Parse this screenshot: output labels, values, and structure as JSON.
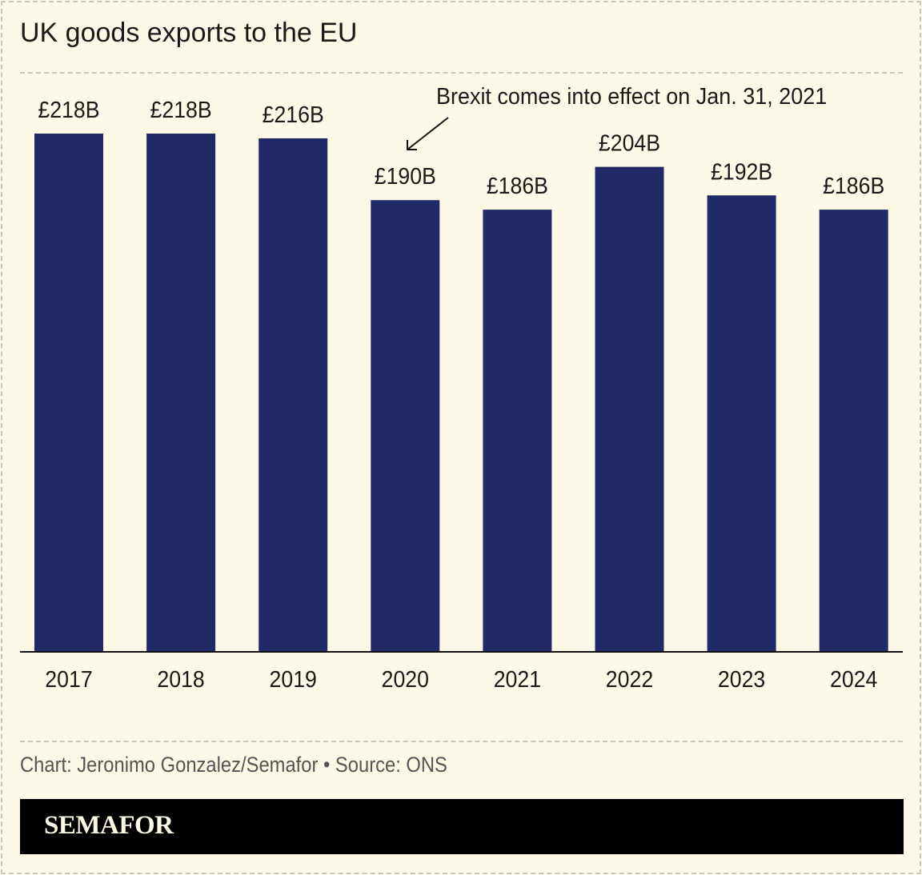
{
  "title": "UK goods exports to the EU",
  "credit": "Chart: Jeronimo Gonzalez/Semafor • Source: ONS",
  "brand": "SEMAFOR",
  "colors": {
    "bar": "#212a66",
    "background": "#fdf9e7"
  },
  "chart_data": {
    "type": "bar",
    "title": "UK goods exports to the EU",
    "categories": [
      "2017",
      "2018",
      "2019",
      "2020",
      "2021",
      "2022",
      "2023",
      "2024"
    ],
    "values": [
      218,
      218,
      216,
      190,
      186,
      204,
      192,
      186
    ],
    "data_labels": [
      "£218B",
      "£218B",
      "£216B",
      "£190B",
      "£186B",
      "£204B",
      "£192B",
      "£186B"
    ],
    "unit": "£ billions",
    "ylim": [
      0,
      218
    ],
    "grid": false,
    "annotations": [
      {
        "text": "Brexit comes into effect on Jan. 31, 2021",
        "points_to": "2020"
      }
    ]
  }
}
